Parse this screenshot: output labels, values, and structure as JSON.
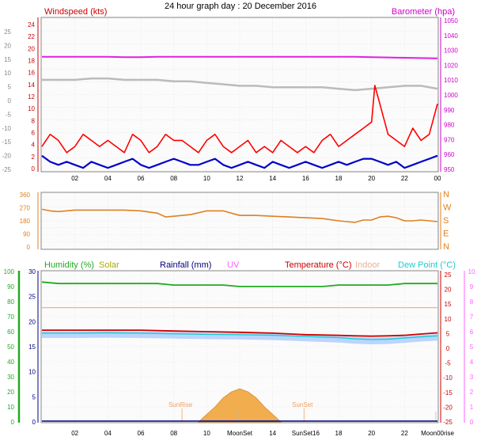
{
  "page_title": "24 hour graph day : 20 December 2016",
  "colors": {
    "wind_gust": "#ff0000",
    "wind_avg": "#0000cc",
    "barometer": "#e020e0",
    "temp_trace": "#bbbbbb",
    "wind_dir": "#e08020",
    "humidity": "#22aa22",
    "solar": "#aaaa00",
    "rainfall": "#000080",
    "uv": "#ff60ff",
    "temperature": "#cc0000",
    "indoor": "#f0b090",
    "dew_point": "#20cccc",
    "dew_band": "#aaccff",
    "solar_fill": "#f0a030"
  },
  "x_ticks": [
    "02",
    "04",
    "06",
    "08",
    "10",
    "12",
    "14",
    "16",
    "18",
    "20",
    "22",
    "00"
  ],
  "chart_data": [
    {
      "type": "line",
      "panel": "wind-barometer",
      "left_label": "Windspeed (kts)",
      "right_label": "Barometer (hpa)",
      "far_left_ticks": [
        "25",
        "20",
        "15",
        "10",
        "5",
        "0",
        "-5",
        "-10",
        "-15",
        "-20",
        "-25"
      ],
      "left_ticks": [
        "24",
        "22",
        "20",
        "18",
        "16",
        "14",
        "12",
        "10",
        "8",
        "6",
        "4",
        "2",
        "0"
      ],
      "right_ticks": [
        "1050",
        "1040",
        "1030",
        "1020",
        "1010",
        "1000",
        "990",
        "980",
        "970",
        "960",
        "950"
      ],
      "x_range": [
        0,
        24
      ],
      "wind_range": [
        0,
        25
      ],
      "baro_range": [
        955,
        1050
      ],
      "temp_trace_range": [
        -26,
        26
      ],
      "series": [
        {
          "key": "barometer",
          "x": [
            0,
            1,
            2,
            3,
            4,
            5,
            6,
            7,
            8,
            9,
            10,
            11,
            12,
            13,
            14,
            15,
            16,
            17,
            18,
            19,
            20,
            21,
            22,
            23,
            24
          ],
          "values": [
            1026,
            1026,
            1026,
            1026,
            1026,
            1025.8,
            1025.8,
            1026,
            1026,
            1026,
            1026,
            1026,
            1026,
            1026,
            1026,
            1026,
            1026,
            1026,
            1026,
            1026,
            1025.8,
            1025.6,
            1025.4,
            1025.2,
            1025
          ]
        },
        {
          "key": "temp_trace",
          "x": [
            0,
            1,
            2,
            3,
            4,
            5,
            6,
            7,
            8,
            9,
            10,
            11,
            12,
            13,
            14,
            15,
            16,
            17,
            18,
            19,
            20,
            21,
            22,
            23,
            24
          ],
          "values": [
            5,
            5,
            5,
            5.5,
            5.5,
            5,
            5,
            5,
            4.5,
            4.5,
            4,
            3.5,
            3,
            3,
            2.5,
            2.5,
            2.5,
            2.5,
            2,
            1.5,
            2,
            2.5,
            3,
            3,
            2
          ]
        },
        {
          "key": "wind_gust",
          "x": [
            0,
            0.5,
            1,
            1.5,
            2,
            2.5,
            3,
            3.5,
            4,
            4.5,
            5,
            5.5,
            6,
            6.5,
            7,
            7.5,
            8,
            8.5,
            9,
            9.5,
            10,
            10.5,
            11,
            11.5,
            12,
            12.5,
            13,
            13.5,
            14,
            14.5,
            15,
            15.5,
            16,
            16.5,
            17,
            17.5,
            18,
            18.5,
            19,
            19.5,
            20,
            20.2,
            20.5,
            21,
            21.5,
            22,
            22.5,
            23,
            23.5,
            24
          ],
          "values": [
            4,
            6,
            5,
            3,
            4,
            6,
            5,
            4,
            5,
            4,
            3,
            6,
            5,
            3,
            4,
            6,
            5,
            5,
            4,
            3,
            5,
            6,
            4,
            3,
            4,
            5,
            3,
            4,
            3,
            5,
            4,
            3,
            4,
            3,
            5,
            6,
            4,
            5,
            6,
            7,
            8,
            14,
            11,
            6,
            5,
            4,
            7,
            5,
            6,
            11
          ]
        },
        {
          "key": "wind_avg",
          "x": [
            0,
            0.5,
            1,
            1.5,
            2,
            2.5,
            3,
            3.5,
            4,
            4.5,
            5,
            5.5,
            6,
            6.5,
            7,
            7.5,
            8,
            8.5,
            9,
            9.5,
            10,
            10.5,
            11,
            11.5,
            12,
            12.5,
            13,
            13.5,
            14,
            14.5,
            15,
            15.5,
            16,
            16.5,
            17,
            17.5,
            18,
            18.5,
            19,
            19.5,
            20,
            20.5,
            21,
            21.5,
            22,
            22.5,
            23,
            23.5,
            24
          ],
          "values": [
            2.5,
            1.5,
            1,
            1.5,
            1,
            0.5,
            1.5,
            1,
            0.5,
            1,
            1.5,
            2,
            1,
            0.5,
            1,
            1.5,
            2,
            1.5,
            1,
            1,
            1.5,
            2,
            1,
            0.5,
            1,
            1.5,
            1,
            0.5,
            1.5,
            1,
            0.5,
            1,
            1.5,
            1,
            0.5,
            1,
            1.5,
            1,
            1.5,
            2,
            2,
            1.5,
            1,
            1.5,
            0.5,
            1,
            1.5,
            2,
            2.5
          ]
        }
      ]
    },
    {
      "type": "line",
      "panel": "wind-direction",
      "left_ticks": [
        "360",
        "270",
        "180",
        "90",
        "0"
      ],
      "right_ticks": [
        "N",
        "W",
        "S",
        "E",
        "N"
      ],
      "x_range": [
        0,
        24
      ],
      "y_range": [
        0,
        360
      ],
      "series": [
        {
          "key": "wind_dir",
          "x": [
            0,
            0.5,
            1,
            2,
            3,
            4,
            5,
            6,
            7,
            7.5,
            8,
            9,
            10,
            11,
            12,
            13,
            14,
            15,
            16,
            17,
            18,
            18.5,
            19,
            19.5,
            20,
            20.5,
            21,
            21.5,
            22,
            22.5,
            23,
            23.5,
            24
          ],
          "values": [
            255,
            245,
            240,
            250,
            250,
            250,
            250,
            245,
            230,
            205,
            210,
            220,
            245,
            245,
            215,
            215,
            210,
            205,
            200,
            195,
            180,
            175,
            170,
            185,
            185,
            205,
            210,
            200,
            180,
            180,
            185,
            180,
            175
          ]
        }
      ]
    },
    {
      "type": "line",
      "panel": "temperature-humidity",
      "legend": [
        {
          "key": "humidity",
          "label": "Humidity (%)"
        },
        {
          "key": "solar",
          "label": "Solar"
        },
        {
          "key": "rainfall",
          "label": "Rainfall (mm)"
        },
        {
          "key": "uv",
          "label": "UV"
        },
        {
          "key": "temperature",
          "label": "Temperature (°C)"
        },
        {
          "key": "indoor",
          "label": "Indoor"
        },
        {
          "key": "dew_point",
          "label": "Dew Point (°C)"
        }
      ],
      "humidity_ticks": [
        "100",
        "90",
        "80",
        "70",
        "60",
        "50",
        "40",
        "30",
        "20",
        "10",
        "0"
      ],
      "rain_ticks": [
        "30",
        "25",
        "20",
        "15",
        "10",
        "5",
        "0"
      ],
      "temp_ticks": [
        "25",
        "20",
        "15",
        "10",
        "5",
        "0",
        "-5",
        "-10",
        "-15",
        "-20",
        "-25"
      ],
      "uv_ticks": [
        "10",
        "9",
        "8",
        "7",
        "6",
        "5",
        "4",
        "3",
        "2",
        "1",
        "0"
      ],
      "x_range": [
        0,
        24
      ],
      "humidity_range": [
        0,
        100
      ],
      "temp_range": [
        -25,
        25
      ],
      "annotations": [
        {
          "label": "SunRise",
          "x": 8.5
        },
        {
          "label": "SunSet",
          "x": 15.9
        },
        {
          "label": "MoonSet",
          "x": 11.9
        },
        {
          "label": "MoonRise",
          "x": 23.9
        }
      ],
      "x_tick_labels_row": [
        "02",
        "04",
        "06",
        "08",
        "10",
        "MoonSet",
        "14",
        "SunSet16",
        "18",
        "20",
        "22",
        "Moon00rise"
      ],
      "series": [
        {
          "key": "humidity",
          "x": [
            0,
            1,
            2,
            3,
            4,
            5,
            6,
            7,
            8,
            9,
            10,
            11,
            12,
            13,
            14,
            15,
            16,
            17,
            18,
            19,
            20,
            21,
            22,
            22.5,
            23,
            24
          ],
          "values": [
            93,
            92,
            92,
            92,
            92,
            92,
            92,
            92,
            91,
            91,
            91,
            91,
            90,
            90,
            90,
            90,
            90,
            90,
            91,
            91,
            91,
            91,
            92,
            92,
            92,
            92
          ]
        },
        {
          "key": "indoor",
          "x": [
            0,
            6,
            12,
            18,
            24
          ],
          "values": [
            13,
            13,
            13,
            13,
            13
          ]
        },
        {
          "key": "temperature",
          "x": [
            0,
            2,
            4,
            6,
            8,
            10,
            12,
            14,
            16,
            18,
            19,
            20,
            21,
            22,
            23,
            24
          ],
          "values": [
            5.5,
            5.5,
            5.5,
            5.5,
            5.2,
            5,
            4.8,
            4.5,
            4,
            3.8,
            3.6,
            3.5,
            3.6,
            3.8,
            4.2,
            4.6
          ]
        },
        {
          "key": "dew_point",
          "x": [
            0,
            2,
            4,
            6,
            8,
            10,
            12,
            14,
            16,
            18,
            19,
            20,
            21,
            22,
            23,
            24
          ],
          "values": [
            4.5,
            4.5,
            4.6,
            4.5,
            4.3,
            4.1,
            4,
            3.8,
            3.4,
            3,
            2.6,
            2.4,
            2.5,
            2.9,
            3.3,
            3.6
          ]
        },
        {
          "key": "solar",
          "x": [
            9.5,
            10,
            10.5,
            11,
            11.5,
            12,
            12.5,
            13,
            13.5,
            14,
            14.5
          ],
          "values": [
            0,
            0.5,
            1,
            1.6,
            2.0,
            2.2,
            2.0,
            1.6,
            1,
            0.5,
            0
          ]
        }
      ]
    }
  ]
}
